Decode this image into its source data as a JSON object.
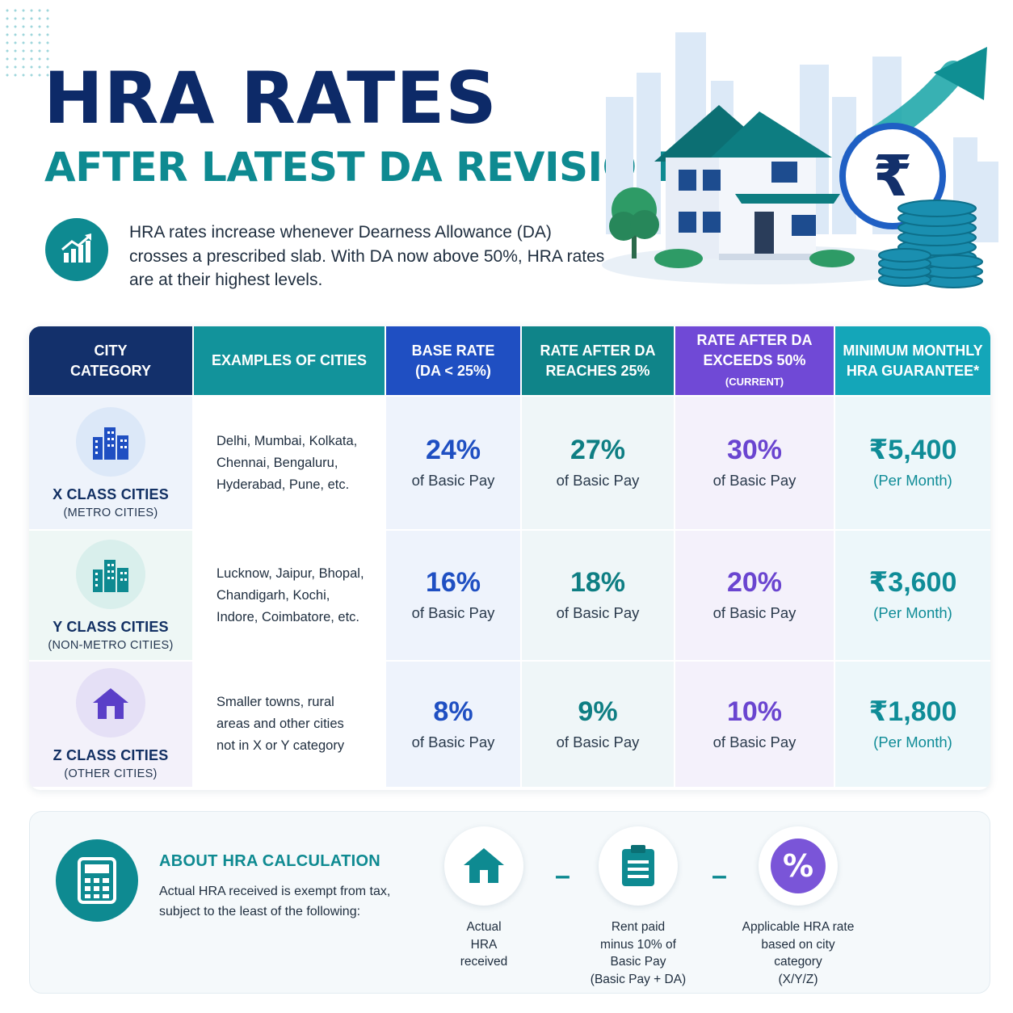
{
  "header": {
    "title": "HRA RATES",
    "subtitle": "AFTER LATEST DA REVISION",
    "intro": "HRA rates increase whenever Dearness Allowance (DA) crosses a prescribed slab. With DA now above 50%, HRA rates are at their highest levels.",
    "intro_icon": "growth-chart-icon",
    "hero_icons": [
      "house-illustration",
      "rupee-coin-icon",
      "coin-stack",
      "upward-arrow",
      "city-skyline"
    ]
  },
  "table": {
    "headers": [
      {
        "line1": "CITY",
        "line2": "CATEGORY",
        "color": "#13306b"
      },
      {
        "line1": "EXAMPLES OF CITIES",
        "line2": "",
        "color": "#12939b"
      },
      {
        "line1": "BASE RATE",
        "line2": "(DA < 25%)",
        "color": "#1f4fc2"
      },
      {
        "line1": "RATE AFTER DA",
        "line2": "REACHES 25%",
        "color": "#0f8489"
      },
      {
        "line1": "RATE AFTER DA",
        "line2": "EXCEEDS 50%",
        "line2_small": "(CURRENT)",
        "color": "#7049d6"
      },
      {
        "line1": "MINIMUM MONTHLY",
        "line2": "HRA GUARANTEE*",
        "color": "#14a6b9"
      }
    ],
    "rows": [
      {
        "category": "X CLASS CITIES",
        "category_sub": "(METRO CITIES)",
        "icon": "city-buildings-icon",
        "examples": [
          "Delhi, Mumbai, Kolkata,",
          "Chennai, Bengaluru,",
          "Hyderabad, Pune, etc."
        ],
        "base_rate": "24%",
        "rate_25": "27%",
        "rate_50": "30%",
        "rate_label": "of Basic Pay",
        "minimum": "₹5,400",
        "minimum_label": "(Per Month)"
      },
      {
        "category": "Y CLASS CITIES",
        "category_sub": "(NON-METRO CITIES)",
        "icon": "city-buildings-icon",
        "examples": [
          "Lucknow, Jaipur, Bhopal,",
          "Chandigarh, Kochi,",
          "Indore, Coimbatore, etc."
        ],
        "base_rate": "16%",
        "rate_25": "18%",
        "rate_50": "20%",
        "rate_label": "of Basic Pay",
        "minimum": "₹3,600",
        "minimum_label": "(Per Month)"
      },
      {
        "category": "Z CLASS CITIES",
        "category_sub": "(OTHER CITIES)",
        "icon": "home-icon",
        "examples": [
          "Smaller towns, rural",
          "areas and other cities",
          "not in X or Y category"
        ],
        "base_rate": "8%",
        "rate_25": "9%",
        "rate_50": "10%",
        "rate_label": "of Basic Pay",
        "minimum": "₹1,800",
        "minimum_label": "(Per Month)"
      }
    ]
  },
  "calculation": {
    "title": "ABOUT HRA CALCULATION",
    "description": "Actual HRA received is exempt from tax, subject to the least of the following:",
    "icon": "calculator-icon",
    "separator": "–",
    "factors": [
      {
        "icon": "home-icon",
        "lines": [
          "Actual",
          "HRA",
          "received"
        ]
      },
      {
        "icon": "clipboard-icon",
        "lines": [
          "Rent paid",
          "minus 10% of",
          "Basic Pay",
          "(Basic Pay + DA)"
        ]
      },
      {
        "icon": "percent-icon",
        "lines": [
          "Applicable HRA rate",
          "based on city",
          "category",
          "(X/Y/Z)"
        ]
      }
    ]
  },
  "colors": {
    "navy": "#0d2a68",
    "teal": "#0e8a91",
    "blue": "#1f4fc2",
    "purple": "#6a45d0",
    "cyan": "#14a6b9"
  }
}
